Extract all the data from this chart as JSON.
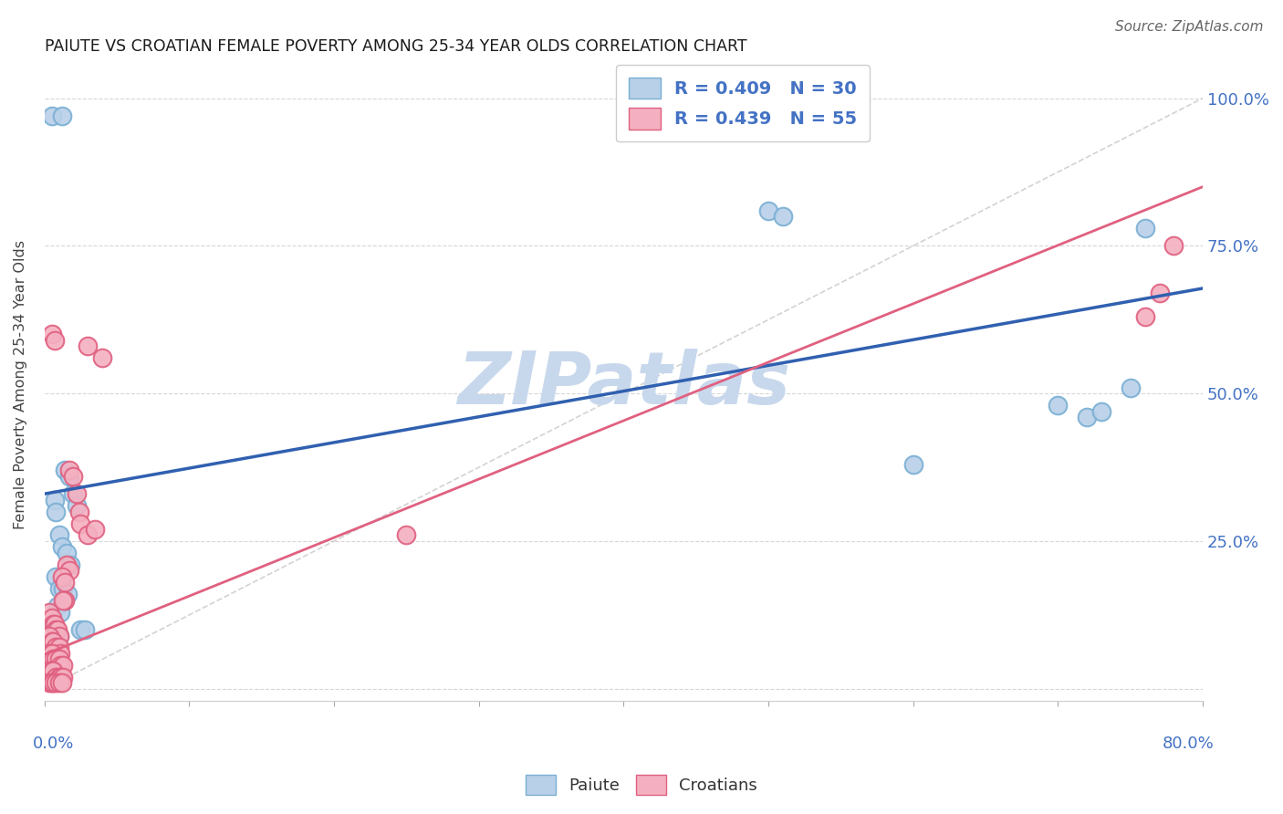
{
  "title": "PAIUTE VS CROATIAN FEMALE POVERTY AMONG 25-34 YEAR OLDS CORRELATION CHART",
  "source": "Source: ZipAtlas.com",
  "ylabel": "Female Poverty Among 25-34 Year Olds",
  "paiute_color": "#b8d0e8",
  "paiute_edge": "#7aafd4",
  "croatian_color": "#f4b0c0",
  "croatian_edge": "#e06080",
  "paiute_line_color": "#3060b0",
  "croatian_line_color": "#e06080",
  "ref_line_color": "#c8c8c8",
  "watermark_color": "#c8d8ec",
  "background_color": "#ffffff",
  "grid_color": "#cccccc",
  "paiute_data": [
    [
      0.005,
      0.97
    ],
    [
      0.012,
      0.97
    ],
    [
      0.5,
      0.81
    ],
    [
      0.51,
      0.8
    ],
    [
      0.6,
      0.38
    ],
    [
      0.7,
      0.48
    ],
    [
      0.72,
      0.46
    ],
    [
      0.75,
      0.51
    ],
    [
      0.73,
      0.47
    ],
    [
      0.76,
      0.78
    ],
    [
      0.007,
      0.32
    ],
    [
      0.008,
      0.3
    ],
    [
      0.014,
      0.37
    ],
    [
      0.017,
      0.36
    ],
    [
      0.02,
      0.33
    ],
    [
      0.022,
      0.31
    ],
    [
      0.01,
      0.26
    ],
    [
      0.012,
      0.24
    ],
    [
      0.015,
      0.23
    ],
    [
      0.018,
      0.21
    ],
    [
      0.008,
      0.19
    ],
    [
      0.01,
      0.17
    ],
    [
      0.013,
      0.17
    ],
    [
      0.016,
      0.16
    ],
    [
      0.009,
      0.14
    ],
    [
      0.011,
      0.13
    ],
    [
      0.008,
      0.1
    ],
    [
      0.01,
      0.09
    ],
    [
      0.025,
      0.1
    ],
    [
      0.028,
      0.1
    ]
  ],
  "croatian_data": [
    [
      0.003,
      0.13
    ],
    [
      0.005,
      0.12
    ],
    [
      0.006,
      0.11
    ],
    [
      0.007,
      0.11
    ],
    [
      0.008,
      0.1
    ],
    [
      0.009,
      0.1
    ],
    [
      0.01,
      0.09
    ],
    [
      0.003,
      0.09
    ],
    [
      0.005,
      0.08
    ],
    [
      0.006,
      0.08
    ],
    [
      0.008,
      0.07
    ],
    [
      0.01,
      0.07
    ],
    [
      0.011,
      0.06
    ],
    [
      0.003,
      0.06
    ],
    [
      0.005,
      0.06
    ],
    [
      0.006,
      0.05
    ],
    [
      0.008,
      0.05
    ],
    [
      0.01,
      0.05
    ],
    [
      0.011,
      0.04
    ],
    [
      0.013,
      0.04
    ],
    [
      0.003,
      0.03
    ],
    [
      0.005,
      0.03
    ],
    [
      0.006,
      0.03
    ],
    [
      0.008,
      0.02
    ],
    [
      0.01,
      0.02
    ],
    [
      0.011,
      0.02
    ],
    [
      0.013,
      0.02
    ],
    [
      0.003,
      0.01
    ],
    [
      0.005,
      0.01
    ],
    [
      0.006,
      0.01
    ],
    [
      0.008,
      0.01
    ],
    [
      0.01,
      0.01
    ],
    [
      0.012,
      0.01
    ],
    [
      0.015,
      0.21
    ],
    [
      0.017,
      0.2
    ],
    [
      0.017,
      0.37
    ],
    [
      0.02,
      0.36
    ],
    [
      0.022,
      0.33
    ],
    [
      0.024,
      0.3
    ],
    [
      0.025,
      0.28
    ],
    [
      0.012,
      0.19
    ],
    [
      0.014,
      0.18
    ],
    [
      0.014,
      0.15
    ],
    [
      0.013,
      0.15
    ],
    [
      0.03,
      0.26
    ],
    [
      0.03,
      0.58
    ],
    [
      0.04,
      0.56
    ],
    [
      0.005,
      0.6
    ],
    [
      0.007,
      0.59
    ],
    [
      0.035,
      0.27
    ],
    [
      0.25,
      0.26
    ],
    [
      0.76,
      0.63
    ],
    [
      0.77,
      0.67
    ],
    [
      0.78,
      0.75
    ]
  ],
  "xlim": [
    0.0,
    0.8
  ],
  "ylim": [
    -0.02,
    1.05
  ],
  "paiute_intercept": 0.33,
  "paiute_slope": 0.435,
  "croatian_intercept": 0.058,
  "croatian_slope": 0.99,
  "ref_intercept": 0.0,
  "ref_slope": 1.25
}
